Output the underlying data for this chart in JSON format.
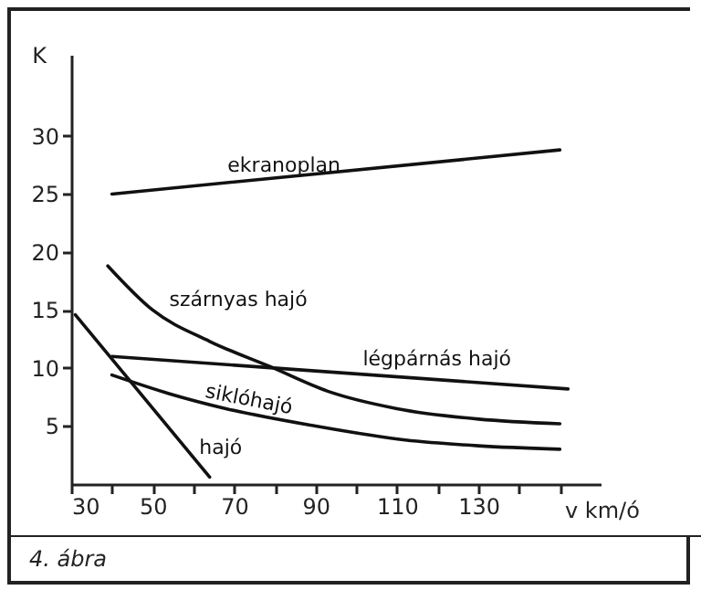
{
  "chart_data": {
    "type": "line",
    "xlabel": "v km/ó",
    "ylabel": "K",
    "xlim": [
      30,
      160
    ],
    "ylim": [
      0,
      37
    ],
    "xticks": [
      30,
      {
        "value": 40,
        "label": null
      },
      50,
      {
        "value": 60,
        "label": null
      },
      70,
      {
        "value": 80,
        "label": null
      },
      90,
      {
        "value": 100,
        "label": null
      },
      110,
      {
        "value": 120,
        "label": null
      },
      130,
      {
        "value": 140,
        "label": null
      },
      {
        "value": 150,
        "label": null
      }
    ],
    "yticks": [
      5,
      10,
      15,
      20,
      25,
      30
    ],
    "grid": false,
    "legend": false,
    "marker": "none",
    "line_style": "solid",
    "series": [
      {
        "name": "ekranoplan",
        "color": "#111111",
        "x": [
          40,
          150
        ],
        "values": [
          25,
          28.8
        ]
      },
      {
        "name": "szárnyas hajó",
        "color": "#111111",
        "x": [
          39,
          50,
          64,
          79,
          93,
          110,
          130,
          150
        ],
        "values": [
          18.8,
          15,
          12.3,
          10.1,
          8,
          6.5,
          5.6,
          5.2
        ]
      },
      {
        "name": "légpárnás hajó",
        "color": "#111111",
        "x": [
          40,
          152
        ],
        "values": [
          11,
          8.2
        ]
      },
      {
        "name": "siklóhajó",
        "color": "#111111",
        "x": [
          40,
          54,
          68,
          90,
          112,
          130,
          150
        ],
        "values": [
          9.4,
          7.8,
          6.5,
          5,
          3.8,
          3.3,
          3
        ]
      },
      {
        "name": "hajó",
        "color": "#111111",
        "x": [
          31,
          64
        ],
        "values": [
          14.6,
          0.6
        ]
      }
    ],
    "annotations": [
      "4. ábra"
    ]
  }
}
